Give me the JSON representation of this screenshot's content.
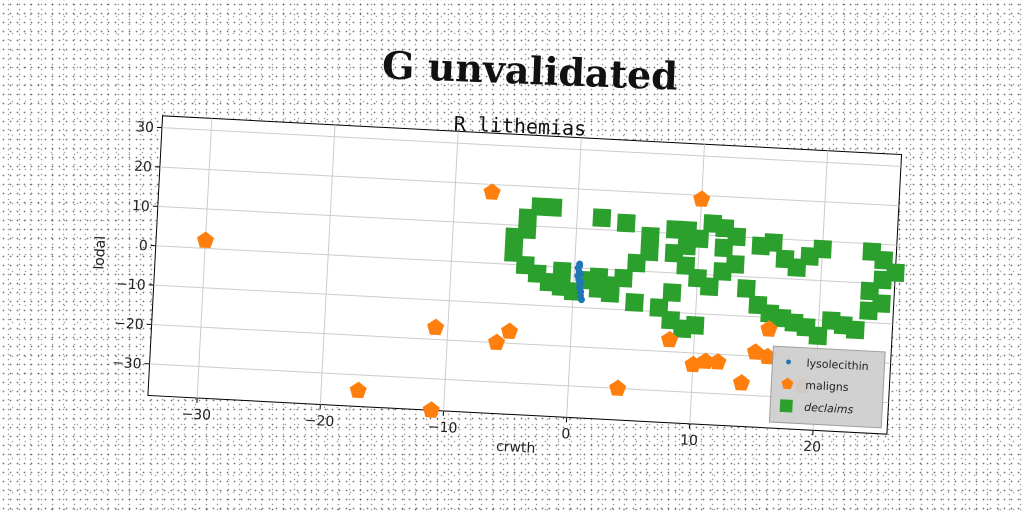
{
  "chart_data": {
    "type": "scatter",
    "title": "G unvalidated",
    "subtitle": "R lithemias",
    "xlabel": "crwth",
    "ylabel": "lodal",
    "xlim": [
      -34,
      26
    ],
    "ylim": [
      -38,
      33
    ],
    "xticks": [
      -30,
      -20,
      -10,
      0,
      10,
      20
    ],
    "yticks": [
      -30,
      -20,
      -10,
      0,
      10,
      20,
      30
    ],
    "grid": true,
    "legend_position": "bottom-right",
    "series": [
      {
        "name": "lysolecithin",
        "marker": "circle",
        "color": "#1f77b4",
        "points": [
          [
            0.3,
            0
          ],
          [
            0.4,
            1
          ],
          [
            0.4,
            -1
          ],
          [
            0.3,
            -2
          ],
          [
            0.4,
            -3
          ],
          [
            0.5,
            -4
          ],
          [
            0.5,
            -5
          ],
          [
            0.6,
            -6
          ],
          [
            0.6,
            -7
          ],
          [
            0.7,
            -8
          ],
          [
            0.4,
            0.5
          ],
          [
            0.5,
            -1.5
          ],
          [
            0.6,
            -3.5
          ]
        ]
      },
      {
        "name": "maligns",
        "marker": "pentagon",
        "color": "#ff7f0e",
        "points": [
          [
            -30,
            2
          ],
          [
            -7,
            18
          ],
          [
            10,
            19
          ],
          [
            -17,
            -34
          ],
          [
            -11,
            -38
          ],
          [
            -11,
            -17
          ],
          [
            -5,
            -17
          ],
          [
            -6,
            -20
          ],
          [
            4,
            -30
          ],
          [
            8,
            -17
          ],
          [
            10,
            -23
          ],
          [
            11,
            -22
          ],
          [
            12,
            -22
          ],
          [
            15,
            -19
          ],
          [
            16,
            -20
          ],
          [
            14,
            -27
          ],
          [
            19,
            -27
          ],
          [
            16,
            -13
          ]
        ]
      },
      {
        "name": "declaims",
        "marker": "square",
        "color": "#2ca02c",
        "points": [
          [
            -3,
            15
          ],
          [
            -2,
            15
          ],
          [
            -4,
            12
          ],
          [
            -4,
            9
          ],
          [
            -5,
            7
          ],
          [
            -5,
            3
          ],
          [
            -4,
            0
          ],
          [
            -3,
            -2
          ],
          [
            -2,
            -4
          ],
          [
            -1,
            -5
          ],
          [
            0,
            -6
          ],
          [
            2,
            -5
          ],
          [
            3,
            -6
          ],
          [
            3,
            -4
          ],
          [
            4,
            -2
          ],
          [
            5,
            2
          ],
          [
            6,
            5
          ],
          [
            6,
            9
          ],
          [
            4,
            12
          ],
          [
            2,
            13
          ],
          [
            8,
            11
          ],
          [
            9,
            11
          ],
          [
            11,
            13
          ],
          [
            12,
            12
          ],
          [
            10,
            9
          ],
          [
            9,
            7
          ],
          [
            8,
            5
          ],
          [
            9,
            2
          ],
          [
            10,
            -1
          ],
          [
            11,
            -3
          ],
          [
            12,
            1
          ],
          [
            13,
            3
          ],
          [
            12,
            7
          ],
          [
            13,
            10
          ],
          [
            15,
            8
          ],
          [
            16,
            9
          ],
          [
            17,
            5
          ],
          [
            18,
            3
          ],
          [
            19,
            6
          ],
          [
            20,
            8
          ],
          [
            14,
            -3
          ],
          [
            15,
            -7
          ],
          [
            16,
            -9
          ],
          [
            17,
            -10
          ],
          [
            18,
            -11
          ],
          [
            19,
            -12
          ],
          [
            20,
            -14
          ],
          [
            21,
            -10
          ],
          [
            22,
            -11
          ],
          [
            23,
            -12
          ],
          [
            24,
            -7
          ],
          [
            25,
            -5
          ],
          [
            8,
            -5
          ],
          [
            7,
            -9
          ],
          [
            8,
            -12
          ],
          [
            9,
            -14
          ],
          [
            10,
            -13
          ],
          [
            24,
            -2
          ],
          [
            25,
            1
          ],
          [
            26,
            3
          ],
          [
            25,
            6
          ],
          [
            24,
            8
          ],
          [
            -1,
            -1
          ],
          [
            1,
            -3
          ],
          [
            2,
            -2
          ],
          [
            5,
            -8
          ]
        ]
      }
    ]
  }
}
